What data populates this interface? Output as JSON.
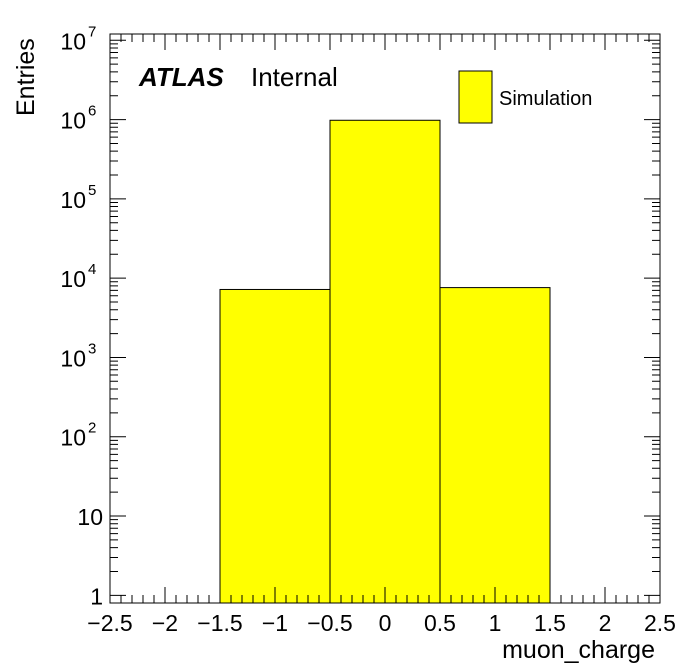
{
  "chart_data": {
    "type": "bar",
    "histogram": true,
    "xlabel": "muon_charge",
    "ylabel": "Entries",
    "xlim": [
      -2.5,
      2.5
    ],
    "ylim": [
      0.8,
      12000000
    ],
    "yscale": "log",
    "x_ticks": [
      "−2.5",
      "−2",
      "−1.5",
      "−1",
      "−0.5",
      "0",
      "0.5",
      "1",
      "1.5",
      "2",
      "2.5"
    ],
    "x_tick_values": [
      -2.5,
      -2,
      -1.5,
      -1,
      -0.5,
      0,
      0.5,
      1,
      1.5,
      2,
      2.5
    ],
    "y_ticks": [
      {
        "value": 1,
        "base": "1",
        "exp": ""
      },
      {
        "value": 10,
        "base": "10",
        "exp": ""
      },
      {
        "value": 100,
        "base": "10",
        "exp": "2"
      },
      {
        "value": 1000,
        "base": "10",
        "exp": "3"
      },
      {
        "value": 10000,
        "base": "10",
        "exp": "4"
      },
      {
        "value": 100000,
        "base": "10",
        "exp": "5"
      },
      {
        "value": 1000000,
        "base": "10",
        "exp": "6"
      },
      {
        "value": 10000000,
        "base": "10",
        "exp": "7"
      }
    ],
    "bins": [
      {
        "low": -1.5,
        "high": -0.5,
        "value": 7200
      },
      {
        "low": -0.5,
        "high": 0.5,
        "value": 980000
      },
      {
        "low": 0.5,
        "high": 1.5,
        "value": 7600
      }
    ],
    "fill_color": "#ffff00",
    "grid": false,
    "legend": {
      "position": "top-right",
      "entries": [
        "Simulation"
      ]
    },
    "annotation": {
      "atlas": "ATLAS",
      "status": "Internal"
    }
  }
}
